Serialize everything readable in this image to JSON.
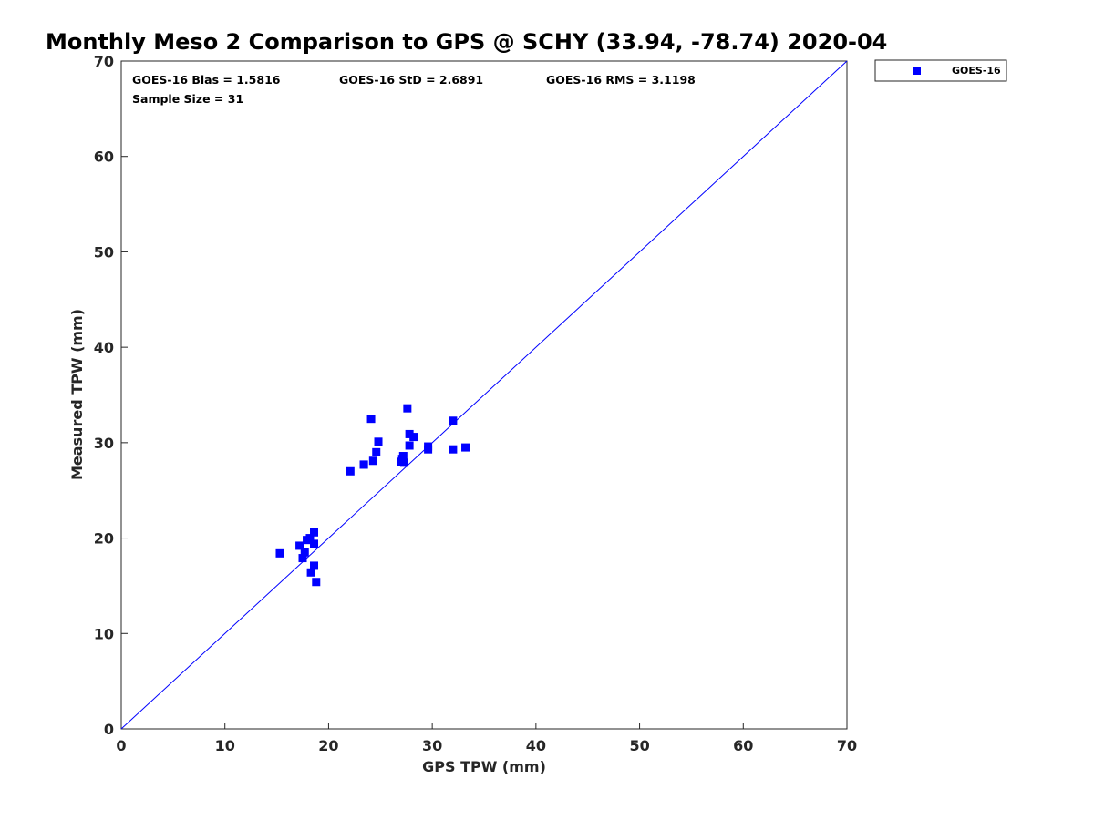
{
  "chart_data": {
    "type": "scatter",
    "title": "Monthly Meso 2 Comparison to GPS @ SCHY (33.94, -78.74) 2020-04",
    "xlabel": "GPS TPW (mm)",
    "ylabel": "Measured TPW (mm)",
    "xlim": [
      0,
      70
    ],
    "ylim": [
      0,
      70
    ],
    "xticks": [
      0,
      10,
      20,
      30,
      40,
      50,
      60,
      70
    ],
    "yticks": [
      0,
      10,
      20,
      30,
      40,
      50,
      60,
      70
    ],
    "grid": false,
    "legend_position": "outside-top-right",
    "reference_line": {
      "type": "one-to-one",
      "from": [
        0,
        0
      ],
      "to": [
        70,
        70
      ],
      "color": "#0000ff"
    },
    "stats": {
      "bias": "GOES-16 Bias = 1.5816",
      "std": "GOES-16 StD = 2.6891",
      "rms": "GOES-16 RMS = 3.1198",
      "sample_size": "Sample Size = 31"
    },
    "series": [
      {
        "name": "GOES-16",
        "color": "#0000ff",
        "marker": "square",
        "points": [
          [
            15.3,
            18.4
          ],
          [
            17.2,
            19.2
          ],
          [
            17.5,
            17.9
          ],
          [
            17.7,
            18.5
          ],
          [
            17.9,
            19.8
          ],
          [
            18.2,
            20.0
          ],
          [
            18.3,
            16.4
          ],
          [
            18.6,
            17.1
          ],
          [
            18.6,
            19.4
          ],
          [
            18.6,
            20.6
          ],
          [
            18.8,
            15.4
          ],
          [
            22.1,
            27.0
          ],
          [
            23.4,
            27.7
          ],
          [
            24.1,
            32.5
          ],
          [
            24.3,
            28.1
          ],
          [
            24.6,
            29.0
          ],
          [
            24.8,
            30.1
          ],
          [
            27.0,
            28.0
          ],
          [
            27.1,
            28.3
          ],
          [
            27.2,
            28.6
          ],
          [
            27.3,
            27.9
          ],
          [
            27.6,
            33.6
          ],
          [
            27.8,
            29.7
          ],
          [
            27.8,
            30.9
          ],
          [
            28.2,
            30.6
          ],
          [
            29.6,
            29.3
          ],
          [
            29.6,
            29.6
          ],
          [
            32.0,
            32.3
          ],
          [
            32.0,
            29.3
          ],
          [
            33.2,
            29.5
          ],
          [
            23.4,
            27.7
          ]
        ]
      }
    ]
  }
}
